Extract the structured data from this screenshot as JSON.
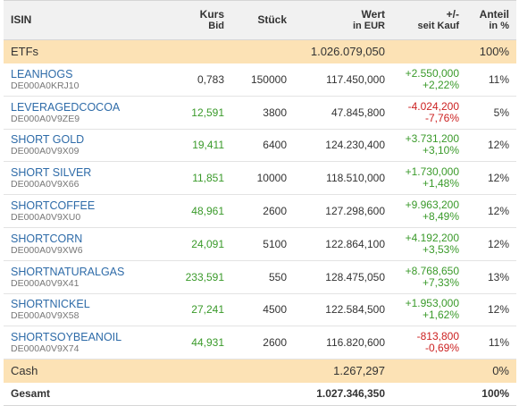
{
  "header": {
    "isin": "ISIN",
    "kurs_line1": "Kurs",
    "kurs_line2": "Bid",
    "stueck": "Stück",
    "wert_line1": "Wert",
    "wert_line2": "in EUR",
    "change_line1": "+/-",
    "change_line2": "seit Kauf",
    "anteil_line1": "Anteil",
    "anteil_line2": "in %"
  },
  "etf_group": {
    "label": "ETFs",
    "wert": "1.026.079,050",
    "anteil": "100%"
  },
  "positions": [
    {
      "name": "LEANHOGS",
      "isin": "DE000A0KRJ10",
      "kurs": "0,783",
      "kurs_up": false,
      "stueck": "150000",
      "wert": "117.450,000",
      "change_abs": "+2.550,000",
      "change_pct": "+2,22%",
      "positive": true,
      "anteil": "11%"
    },
    {
      "name": "LEVERAGEDCOCOA",
      "isin": "DE000A0V9ZE9",
      "kurs": "12,591",
      "kurs_up": true,
      "stueck": "3800",
      "wert": "47.845,800",
      "change_abs": "-4.024,200",
      "change_pct": "-7,76%",
      "positive": false,
      "anteil": "5%"
    },
    {
      "name": "SHORT GOLD",
      "isin": "DE000A0V9X09",
      "kurs": "19,411",
      "kurs_up": true,
      "stueck": "6400",
      "wert": "124.230,400",
      "change_abs": "+3.731,200",
      "change_pct": "+3,10%",
      "positive": true,
      "anteil": "12%"
    },
    {
      "name": "SHORT SILVER",
      "isin": "DE000A0V9X66",
      "kurs": "11,851",
      "kurs_up": true,
      "stueck": "10000",
      "wert": "118.510,000",
      "change_abs": "+1.730,000",
      "change_pct": "+1,48%",
      "positive": true,
      "anteil": "12%"
    },
    {
      "name": "SHORTCOFFEE",
      "isin": "DE000A0V9XU0",
      "kurs": "48,961",
      "kurs_up": true,
      "stueck": "2600",
      "wert": "127.298,600",
      "change_abs": "+9.963,200",
      "change_pct": "+8,49%",
      "positive": true,
      "anteil": "12%"
    },
    {
      "name": "SHORTCORN",
      "isin": "DE000A0V9XW6",
      "kurs": "24,091",
      "kurs_up": true,
      "stueck": "5100",
      "wert": "122.864,100",
      "change_abs": "+4.192,200",
      "change_pct": "+3,53%",
      "positive": true,
      "anteil": "12%"
    },
    {
      "name": "SHORTNATURALGAS",
      "isin": "DE000A0V9X41",
      "kurs": "233,591",
      "kurs_up": true,
      "stueck": "550",
      "wert": "128.475,050",
      "change_abs": "+8.768,650",
      "change_pct": "+7,33%",
      "positive": true,
      "anteil": "13%"
    },
    {
      "name": "SHORTNICKEL",
      "isin": "DE000A0V9X58",
      "kurs": "27,241",
      "kurs_up": true,
      "stueck": "4500",
      "wert": "122.584,500",
      "change_abs": "+1.953,000",
      "change_pct": "+1,62%",
      "positive": true,
      "anteil": "12%"
    },
    {
      "name": "SHORTSOYBEANOIL",
      "isin": "DE000A0V9X74",
      "kurs": "44,931",
      "kurs_up": true,
      "stueck": "2600",
      "wert": "116.820,600",
      "change_abs": "-813,800",
      "change_pct": "-0,69%",
      "positive": false,
      "anteil": "11%"
    }
  ],
  "cash": {
    "label": "Cash",
    "wert": "1.267,297",
    "anteil": "0%"
  },
  "total": {
    "label": "Gesamt",
    "wert": "1.027.346,350",
    "anteil": "100%"
  },
  "colors": {
    "header_bg": "#f1f1f1",
    "group_bg": "#fce2b5",
    "link": "#2e6ba8",
    "positive": "#3a9a2a",
    "negative": "#cc2222"
  }
}
